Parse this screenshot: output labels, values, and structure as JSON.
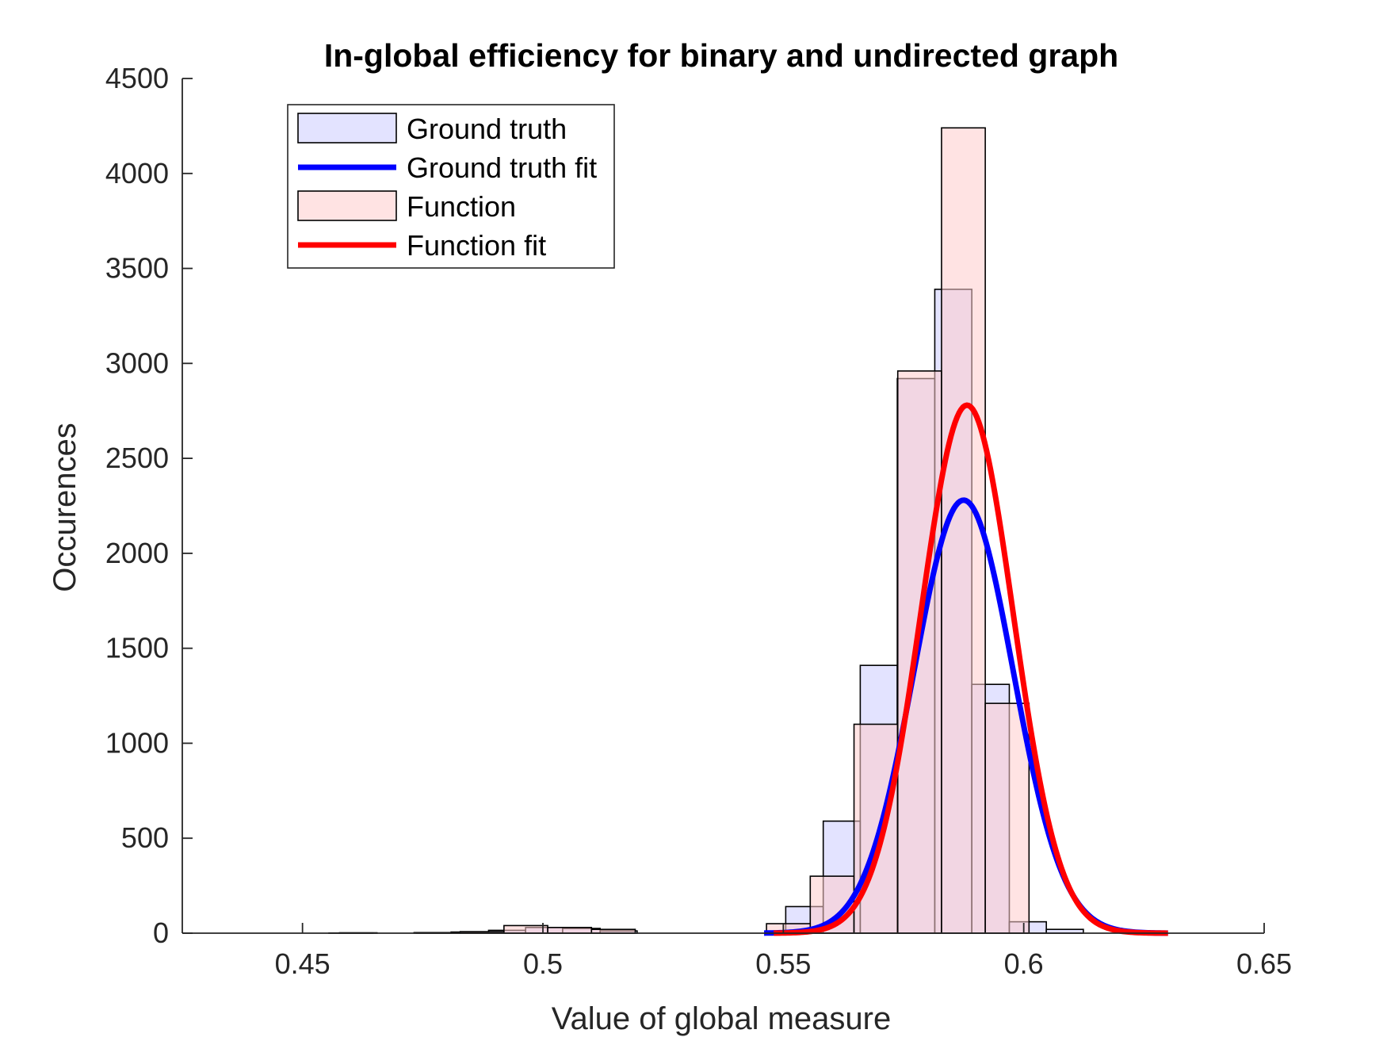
{
  "chart_data": {
    "type": "bar",
    "title": "In-global efficiency for binary and undirected graph",
    "xlabel": "Value of global measure",
    "ylabel": "Occurences",
    "xlim": [
      0.425,
      0.65
    ],
    "ylim": [
      0,
      4500
    ],
    "xticks": [
      0.45,
      0.5,
      0.55,
      0.6,
      0.65
    ],
    "xtick_labels": [
      "0.45",
      "0.5",
      "0.55",
      "0.6",
      "0.65"
    ],
    "yticks": [
      0,
      500,
      1000,
      1500,
      2000,
      2500,
      3000,
      3500,
      4000,
      4500
    ],
    "ytick_labels": [
      "0",
      "500",
      "1000",
      "1500",
      "2000",
      "2500",
      "3000",
      "3500",
      "4000",
      "4500"
    ],
    "grid": false,
    "legend_location": "top-left",
    "legend": [
      "Ground truth",
      "Ground truth fit",
      "Function",
      "Function fit"
    ],
    "series": [
      {
        "name": "Ground truth",
        "kind": "histogram",
        "color": "#ccccff",
        "edge": "#000000",
        "bins": [
          [
            0.4577,
            0.4655,
            2
          ],
          [
            0.4732,
            0.4809,
            3
          ],
          [
            0.4809,
            0.4887,
            6
          ],
          [
            0.4887,
            0.4964,
            15
          ],
          [
            0.4964,
            0.5041,
            30
          ],
          [
            0.5041,
            0.5119,
            25
          ],
          [
            0.5119,
            0.5196,
            12
          ],
          [
            0.5505,
            0.5583,
            140
          ],
          [
            0.5583,
            0.566,
            590
          ],
          [
            0.566,
            0.5737,
            1410
          ],
          [
            0.5737,
            0.5815,
            2920
          ],
          [
            0.5815,
            0.5892,
            3390
          ],
          [
            0.5892,
            0.597,
            1310
          ],
          [
            0.597,
            0.6047,
            60
          ],
          [
            0.6047,
            0.6124,
            20
          ]
        ]
      },
      {
        "name": "Function",
        "kind": "histogram",
        "color": "#ffcccc",
        "edge": "#000000",
        "bins": [
          [
            0.4555,
            0.4646,
            1
          ],
          [
            0.4737,
            0.4828,
            3
          ],
          [
            0.4828,
            0.4919,
            8
          ],
          [
            0.4919,
            0.501,
            40
          ],
          [
            0.501,
            0.5101,
            30
          ],
          [
            0.5101,
            0.5192,
            20
          ],
          [
            0.5465,
            0.5556,
            50
          ],
          [
            0.5556,
            0.5647,
            300
          ],
          [
            0.5647,
            0.5738,
            1100
          ],
          [
            0.5738,
            0.5829,
            2960
          ],
          [
            0.5829,
            0.592,
            4240
          ],
          [
            0.592,
            0.6011,
            1210
          ]
        ]
      },
      {
        "name": "Ground truth fit",
        "kind": "normal_fit",
        "color": "#0000ff",
        "mu": 0.5875,
        "sigma": 0.0103,
        "peak": 2280,
        "x_range": [
          0.546,
          0.63
        ]
      },
      {
        "name": "Function fit",
        "kind": "normal_fit",
        "color": "#ff0000",
        "mu": 0.5882,
        "sigma": 0.0096,
        "peak": 2780,
        "x_range": [
          0.548,
          0.63
        ]
      }
    ]
  }
}
